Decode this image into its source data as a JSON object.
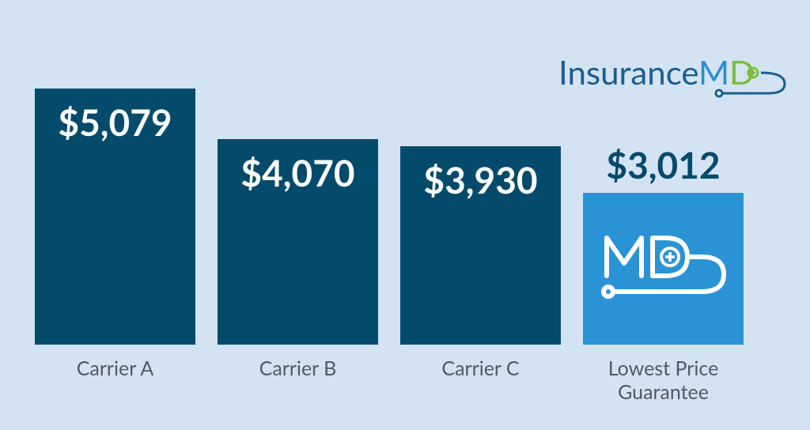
{
  "logo": [
    "Insurance",
    "M",
    "D"
  ],
  "chart_data": {
    "type": "bar",
    "categories": [
      "Carrier A",
      "Carrier B",
      "Carrier C",
      "Lowest Price Guarantee"
    ],
    "values": [
      5079,
      4070,
      3930,
      3012
    ],
    "value_labels": [
      "$5,079",
      "$4,070",
      "$3,930",
      "$3,012"
    ],
    "colors": [
      "#044a6b",
      "#044a6b",
      "#044a6b",
      "#2a93d5"
    ]
  }
}
